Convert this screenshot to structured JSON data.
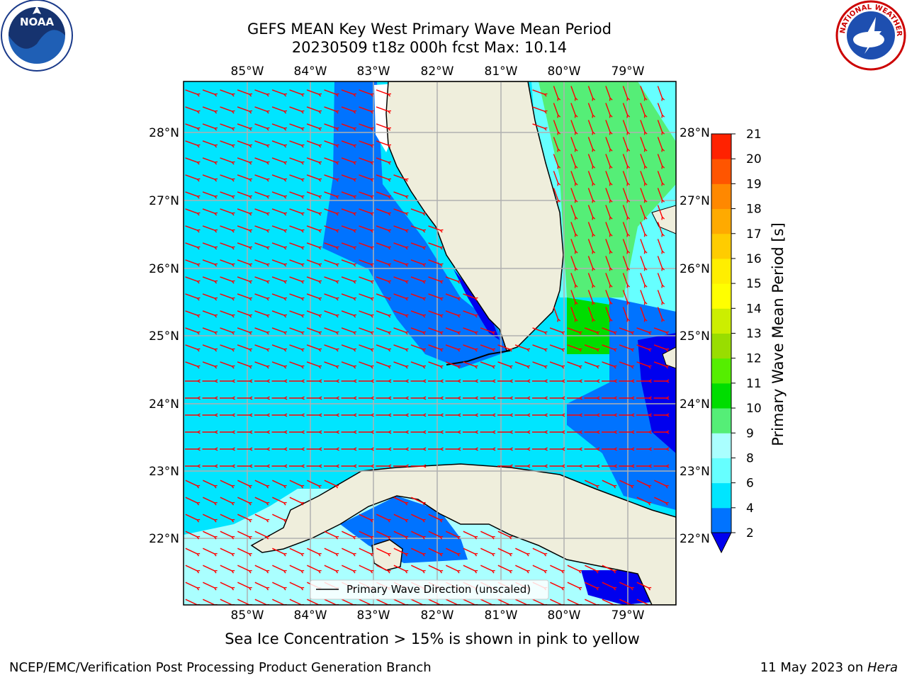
{
  "title": {
    "line1": "GEFS MEAN Key West Primary Wave Mean Period",
    "line2": "20230509 t18z 000h fcst   Max: 10.14"
  },
  "logos": {
    "left": {
      "icon": "noaa-logo-icon",
      "text": "NOAA"
    },
    "right": {
      "icon": "national-weather-service-logo-icon",
      "text": "NATIONAL WEATHER SERVICE"
    }
  },
  "map": {
    "lon_labels": [
      "85°W",
      "84°W",
      "83°W",
      "82°W",
      "81°W",
      "80°W",
      "79°W"
    ],
    "lat_labels": [
      "28°N",
      "27°N",
      "26°N",
      "25°N",
      "24°N",
      "23°N",
      "22°N"
    ],
    "legend_label": "Primary Wave Direction (unscaled)",
    "colors": {
      "land": "#efeedc",
      "grid": "#b0b0b0",
      "arrow": "#ff0000"
    }
  },
  "colorbar": {
    "label": "Primary Wave Mean Period [s]",
    "ticks": [
      "2",
      "4",
      "6",
      "8",
      "9",
      "10",
      "11",
      "12",
      "13",
      "14",
      "15",
      "16",
      "17",
      "18",
      "19",
      "20",
      "21"
    ],
    "colors": [
      "#0073ff",
      "#00e5ff",
      "#66ffff",
      "#aaffff",
      "#55ee77",
      "#00dd00",
      "#55ee00",
      "#99dd00",
      "#ccee00",
      "#ffff00",
      "#ffee00",
      "#ffcc00",
      "#ffaa00",
      "#ff8800",
      "#ff5500",
      "#ff2200"
    ],
    "under_color": "#0000ee"
  },
  "notes": {
    "ice": "Sea Ice Concentration > 15% is shown in pink to yellow"
  },
  "footer": {
    "left": "NCEP/EMC/Verification Post Processing Product Generation Branch",
    "right_prefix": "11 May 2023 on ",
    "right_machine": "Hera"
  }
}
